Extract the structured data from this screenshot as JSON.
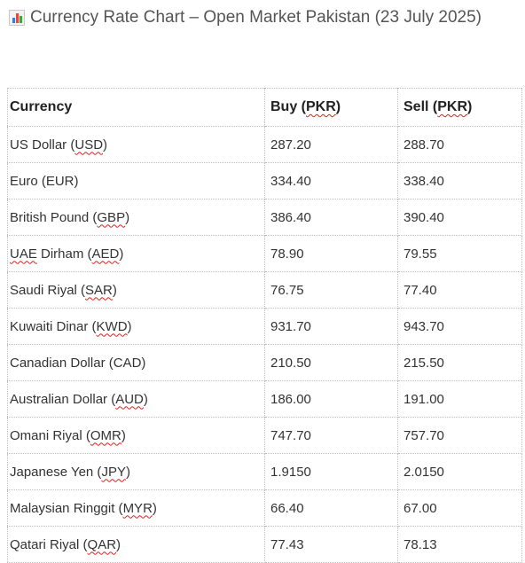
{
  "title": "Currency Rate Chart – Open Market Pakistan (23 July 2025)",
  "title_icon": "bar-chart-icon",
  "table": {
    "headers": {
      "currency": "Currency",
      "buy_prefix": "Buy (",
      "buy_unit": "PKR",
      "sell_prefix": "Sell (",
      "sell_unit": "PKR",
      "close": ")"
    },
    "rows": [
      {
        "name": "US Dollar (",
        "code": "USD",
        "buy": "287.20",
        "sell": "288.70"
      },
      {
        "name": "Euro (EUR)",
        "code": "",
        "buy": "334.40",
        "sell": "338.40"
      },
      {
        "name": "British Pound (",
        "code": "GBP",
        "buy": "386.40",
        "sell": "390.40"
      },
      {
        "name": "UAE",
        "name_rest": " Dirham (",
        "code": "AED",
        "buy": "78.90",
        "sell": "79.55"
      },
      {
        "name": "Saudi Riyal (",
        "code": "SAR",
        "buy": "76.75",
        "sell": "77.40"
      },
      {
        "name": "Kuwaiti Dinar (",
        "code": "KWD",
        "buy": "931.70",
        "sell": "943.70"
      },
      {
        "name": "Canadian Dollar (CAD)",
        "code": "",
        "buy": "210.50",
        "sell": "215.50"
      },
      {
        "name": "Australian Dollar (",
        "code": "AUD",
        "buy": "186.00",
        "sell": "191.00"
      },
      {
        "name": "Omani Riyal (",
        "code": "OMR",
        "buy": "747.70",
        "sell": "757.70"
      },
      {
        "name": "Japanese Yen (",
        "code": "JPY",
        "buy": "1.9150",
        "sell": "2.0150"
      },
      {
        "name": "Malaysian Ringgit (",
        "code": "MYR",
        "buy": "66.40",
        "sell": "67.00"
      },
      {
        "name": "Qatari Riyal (",
        "code": "QAR",
        "buy": "77.43",
        "sell": "78.13"
      }
    ]
  }
}
